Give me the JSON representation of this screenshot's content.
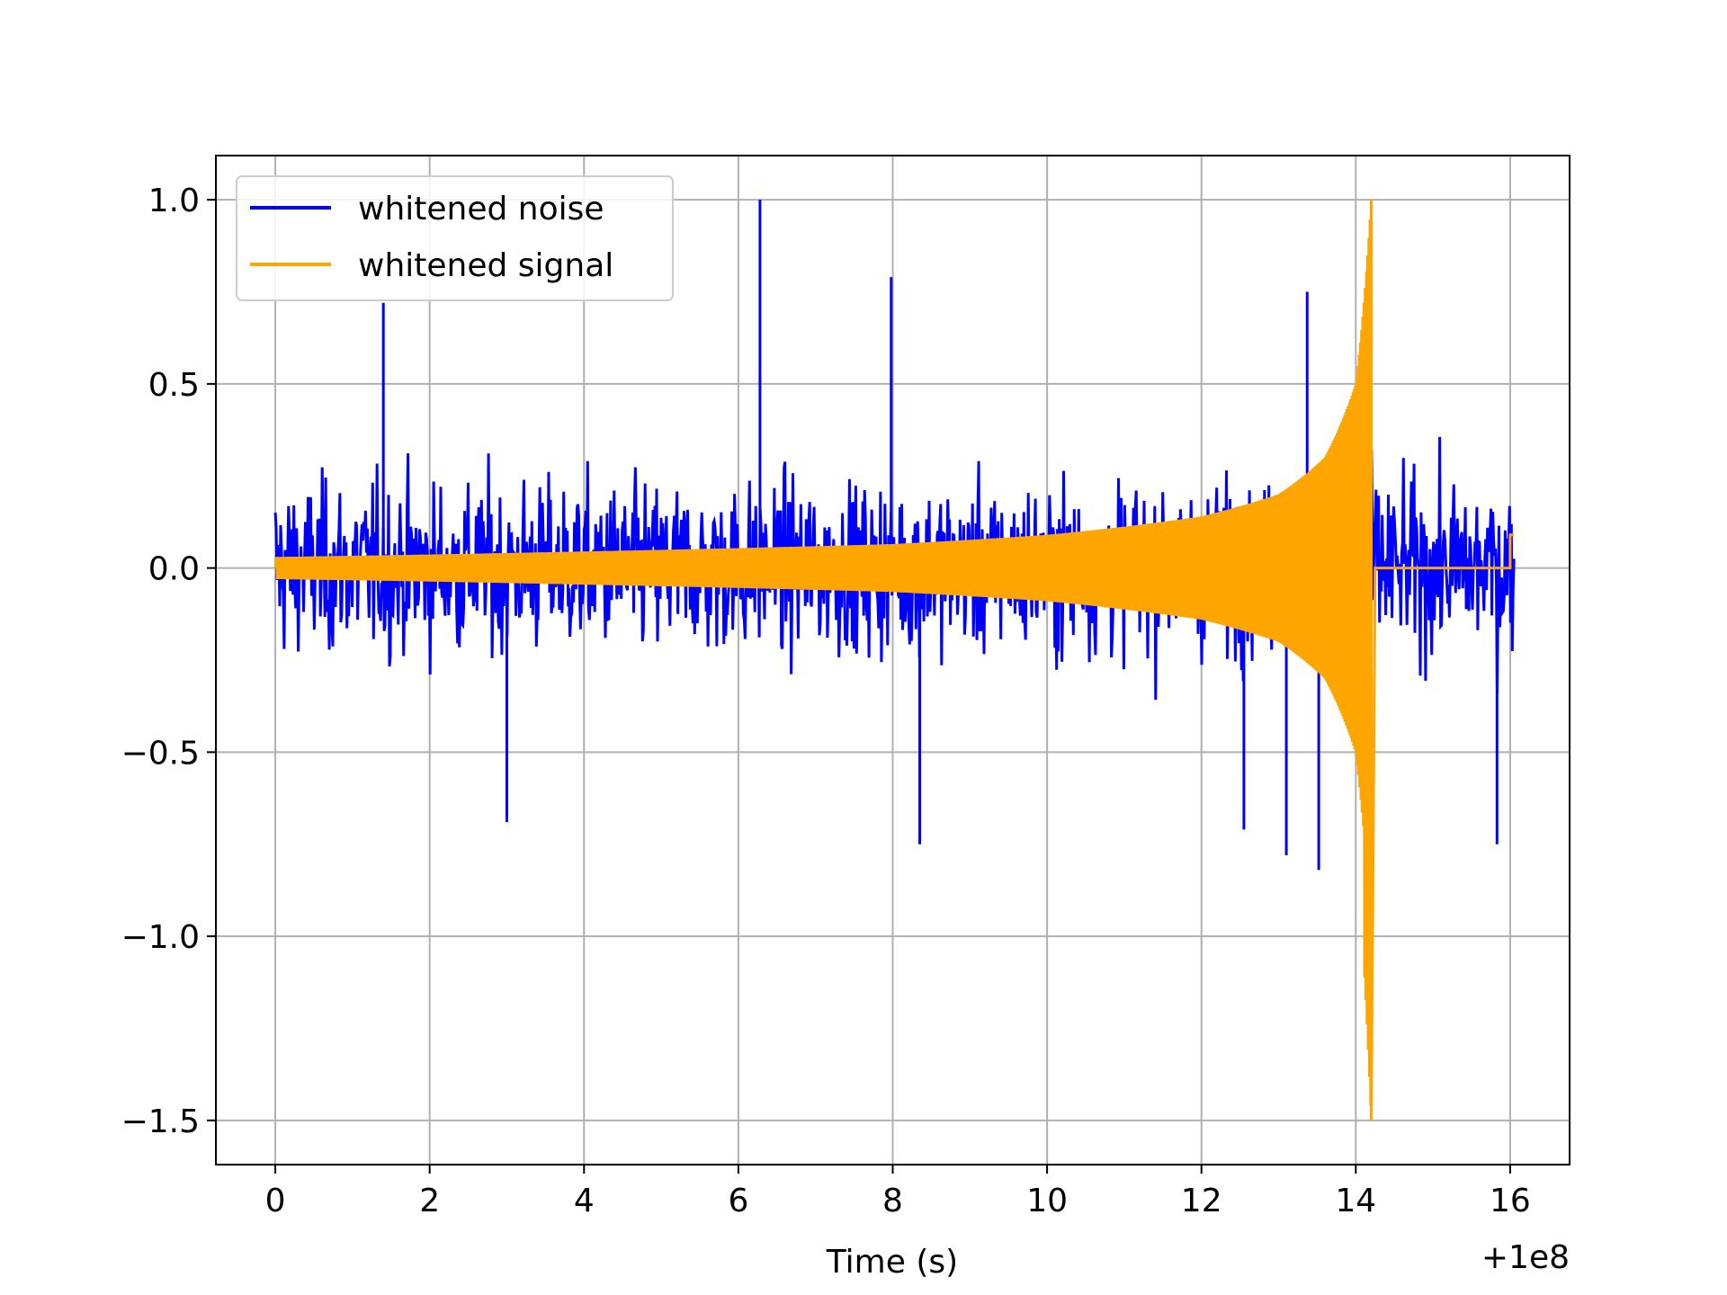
{
  "chart_data": {
    "type": "line",
    "xlabel": "Time (s)",
    "x_offset_label": "+1e8",
    "ylabel": "",
    "xlim": [
      -0.77,
      16.77
    ],
    "ylim": [
      -1.62,
      1.12
    ],
    "xticks": [
      0,
      2,
      4,
      6,
      8,
      10,
      12,
      14,
      16
    ],
    "xtick_labels": [
      "0",
      "2",
      "4",
      "6",
      "8",
      "10",
      "12",
      "14",
      "16"
    ],
    "yticks": [
      1.0,
      0.5,
      0.0,
      -0.5,
      -1.0,
      -1.5
    ],
    "ytick_labels": [
      "1.0",
      "0.5",
      "0.0",
      "−0.5",
      "−1.0",
      "−1.5"
    ],
    "grid": true,
    "legend_position": "upper-left",
    "legend": [
      {
        "label": "whitened noise",
        "color": "#0000ff"
      },
      {
        "label": "whitened signal",
        "color": "#ffa500"
      }
    ],
    "series": [
      {
        "name": "whitened noise",
        "color": "#0000ff",
        "description_values": "dense random noise between about -0.8 and 1.0",
        "x_range": [
          0.0,
          16.05
        ],
        "typical_amplitude": 0.38,
        "peak_spikes": [
          {
            "x": 6.28,
            "y": 1.0
          },
          {
            "x": 7.98,
            "y": 0.79
          },
          {
            "x": 13.52,
            "y": -0.82
          },
          {
            "x": 13.1,
            "y": -0.78
          },
          {
            "x": 8.35,
            "y": -0.75
          },
          {
            "x": 15.83,
            "y": -0.75
          },
          {
            "x": 3.0,
            "y": -0.69
          },
          {
            "x": 1.4,
            "y": 0.72
          },
          {
            "x": 13.37,
            "y": 0.75
          },
          {
            "x": 12.55,
            "y": -0.71
          }
        ]
      },
      {
        "name": "whitened signal",
        "color": "#ffa500",
        "x_range": [
          0.0,
          16.05
        ],
        "merger_time": 14.2,
        "envelope": [
          {
            "x": 0.0,
            "y": 0.03
          },
          {
            "x": 4.0,
            "y": 0.045
          },
          {
            "x": 8.0,
            "y": 0.065
          },
          {
            "x": 10.0,
            "y": 0.09
          },
          {
            "x": 12.0,
            "y": 0.14
          },
          {
            "x": 13.0,
            "y": 0.2
          },
          {
            "x": 13.6,
            "y": 0.3
          },
          {
            "x": 14.0,
            "y": 0.5
          },
          {
            "x": 14.2,
            "y": 1.0
          }
        ],
        "min_value": -1.5,
        "max_value": 1.0,
        "post_merger_value": 0.0,
        "end_step_value": 0.09
      }
    ]
  }
}
